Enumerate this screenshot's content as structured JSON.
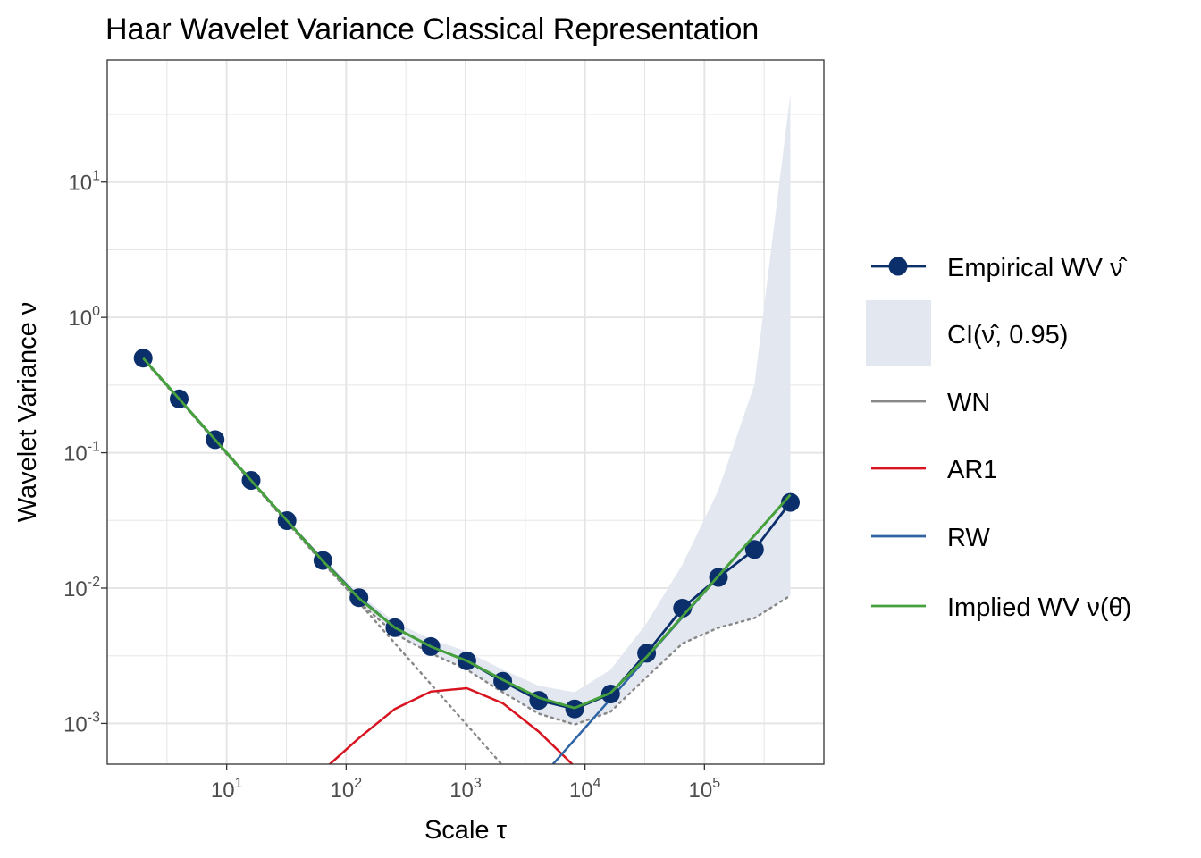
{
  "colors": {
    "empirical": "#0B2F6B",
    "ci_fill": "#E3E8F0",
    "wn": "#888888",
    "ar1": "#D7141F",
    "rw": "#2E64A4",
    "implied": "#46A13D",
    "grid": "#E5E5E5",
    "panel_border": "#333333"
  },
  "chart_data": {
    "type": "line",
    "title": "Haar Wavelet Variance Classical Representation",
    "xlabel": "Scale τ",
    "ylabel": "Wavelet Variance ν",
    "x_scale": "log10",
    "y_scale": "log10",
    "xlim": [
      1.0,
      1000000.0
    ],
    "ylim": [
      0.0005,
      80
    ],
    "x_ticks": [
      {
        "value": 10,
        "base": "10",
        "exp": "1"
      },
      {
        "value": 100,
        "base": "10",
        "exp": "2"
      },
      {
        "value": 1000,
        "base": "10",
        "exp": "3"
      },
      {
        "value": 10000,
        "base": "10",
        "exp": "4"
      },
      {
        "value": 100000,
        "base": "10",
        "exp": "5"
      }
    ],
    "y_ticks": [
      {
        "value": 0.001,
        "base": "10",
        "exp": "-3"
      },
      {
        "value": 0.01,
        "base": "10",
        "exp": "-2"
      },
      {
        "value": 0.1,
        "base": "10",
        "exp": "-1"
      },
      {
        "value": 1,
        "base": "10",
        "exp": "0"
      },
      {
        "value": 10,
        "base": "10",
        "exp": "1"
      }
    ],
    "grid": true,
    "legend_position": "right",
    "scales": [
      2,
      4,
      8,
      16,
      32,
      64,
      128,
      256,
      512,
      1024,
      2048,
      4096,
      8192,
      16384,
      32768,
      65536,
      131072,
      262144,
      524288
    ],
    "series": [
      {
        "name": "Empirical WV ν̂",
        "kind": "line+points",
        "values": [
          0.5,
          0.25,
          0.125,
          0.0625,
          0.0315,
          0.016,
          0.0085,
          0.0051,
          0.0037,
          0.0029,
          0.00205,
          0.00148,
          0.00128,
          0.00165,
          0.0033,
          0.0071,
          0.012,
          0.0193,
          0.043
        ]
      },
      {
        "name": "CI(ν̂, 0.95)",
        "kind": "band",
        "lower": [
          0.49,
          0.245,
          0.122,
          0.061,
          0.0305,
          0.0153,
          0.0079,
          0.0046,
          0.0033,
          0.0025,
          0.0017,
          0.00118,
          0.00098,
          0.00122,
          0.0022,
          0.0039,
          0.0051,
          0.006,
          0.0088
        ],
        "upper": [
          0.51,
          0.256,
          0.128,
          0.064,
          0.0325,
          0.0168,
          0.0091,
          0.0056,
          0.0042,
          0.0034,
          0.0025,
          0.0019,
          0.0017,
          0.0025,
          0.0055,
          0.015,
          0.053,
          0.32,
          45
        ]
      },
      {
        "name": "WN",
        "kind": "line",
        "values": [
          0.5,
          0.25,
          0.125,
          0.0625,
          0.03125,
          0.015625,
          0.0078125,
          0.00390625,
          0.001953125,
          0.0009765625,
          0.00048828125
        ]
      },
      {
        "name": "AR1",
        "kind": "line",
        "values": [
          null,
          null,
          null,
          null,
          null,
          0.00045,
          0.00078,
          0.00128,
          0.00172,
          0.00182,
          0.00141,
          0.00087,
          0.00048
        ]
      },
      {
        "name": "RW",
        "kind": "line",
        "values": [
          null,
          null,
          null,
          null,
          null,
          null,
          null,
          null,
          null,
          null,
          null,
          0.00038,
          0.00076,
          0.00152,
          0.00305,
          0.0061,
          0.0122,
          0.0244,
          0.0488
        ]
      },
      {
        "name": "Implied WV ν(θ̂)",
        "kind": "line",
        "values": [
          0.5,
          0.25,
          0.125,
          0.0625,
          0.0315,
          0.0158,
          0.0084,
          0.0051,
          0.0037,
          0.0029,
          0.0021,
          0.00155,
          0.0013,
          0.00168,
          0.0031,
          0.0062,
          0.0123,
          0.0245,
          0.0489
        ]
      },
      {
        "name": "",
        "kind": "ci-lower-dotted",
        "values": [
          0.49,
          0.245,
          0.122,
          0.061,
          0.0305,
          0.0153,
          0.0079,
          0.0046,
          0.0033,
          0.0025,
          0.0017,
          0.00118,
          0.00098,
          0.00122,
          0.0022,
          0.0039,
          0.0051,
          0.006,
          0.0088
        ]
      }
    ]
  }
}
